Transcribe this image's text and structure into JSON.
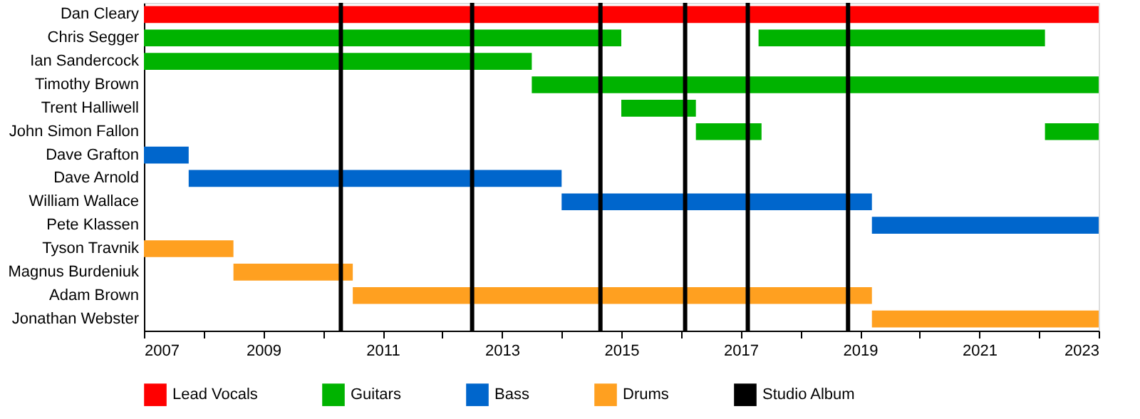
{
  "chart_data": {
    "type": "bar",
    "orientation": "horizontal",
    "categories": [
      "Dan Cleary",
      "Chris Segger",
      "Ian Sandercock",
      "Timothy Brown",
      "Trent Halliwell",
      "John Simon Fallon",
      "Dave Grafton",
      "Dave Arnold",
      "William Wallace",
      "Pete Klassen",
      "Tyson Travnik",
      "Magnus Burdeniuk",
      "Adam Brown",
      "Jonathan Webster"
    ],
    "series": [
      {
        "name": "Lead Vocals",
        "color": "#ff0000",
        "base": [
          2007,
          null,
          null,
          null,
          null,
          null,
          null,
          null,
          null,
          null,
          null,
          null,
          null,
          null
        ],
        "values": [
          16,
          null,
          null,
          null,
          null,
          null,
          null,
          null,
          null,
          null,
          null,
          null,
          null,
          null
        ]
      },
      {
        "name": "Guitars",
        "color": "#00b300",
        "base": [
          null,
          2007,
          2007,
          2013.5,
          2015.0,
          2016.25,
          null,
          null,
          null,
          null,
          null,
          null,
          null,
          null
        ],
        "values": [
          null,
          8.0,
          6.5,
          9.5,
          1.25,
          1.1,
          null,
          null,
          null,
          null,
          null,
          null,
          null,
          null
        ]
      },
      {
        "color": "#00b300",
        "base": [
          null,
          2017.3,
          null,
          null,
          null,
          2022.1,
          null,
          null,
          null,
          null,
          null,
          null,
          null,
          null
        ],
        "values": [
          null,
          4.8,
          null,
          null,
          null,
          0.9,
          null,
          null,
          null,
          null,
          null,
          null,
          null,
          null
        ]
      },
      {
        "name": "Bass",
        "color": "#0066cc",
        "base": [
          null,
          null,
          null,
          null,
          null,
          null,
          2007,
          2007.75,
          2014.0,
          2019.2,
          null,
          null,
          null,
          null
        ],
        "values": [
          null,
          null,
          null,
          null,
          null,
          null,
          0.75,
          6.25,
          5.2,
          3.8,
          null,
          null,
          null,
          null
        ]
      },
      {
        "name": "Drums",
        "color": "#ffa020",
        "base": [
          null,
          null,
          null,
          null,
          null,
          null,
          null,
          null,
          null,
          null,
          2007,
          2008.5,
          2010.5,
          2019.2
        ],
        "values": [
          null,
          null,
          null,
          null,
          null,
          null,
          null,
          null,
          null,
          null,
          1.5,
          2.0,
          8.7,
          3.8
        ]
      }
    ],
    "ref_lines": [
      {
        "axis": "x",
        "value": 2010.3,
        "label": "Studio Album",
        "color": "#000000"
      },
      {
        "axis": "x",
        "value": 2012.5,
        "color": "#000000"
      },
      {
        "axis": "x",
        "value": 2014.65,
        "color": "#000000"
      },
      {
        "axis": "x",
        "value": 2016.07,
        "color": "#000000"
      },
      {
        "axis": "x",
        "value": 2017.12,
        "color": "#000000"
      },
      {
        "axis": "x",
        "value": 2018.8,
        "color": "#000000"
      }
    ],
    "xlim": [
      2007,
      2023
    ],
    "xticks": [
      2007,
      {
        "value": 2008,
        "label": null
      },
      2009,
      {
        "value": 2010,
        "label": null
      },
      2011,
      {
        "value": 2012,
        "label": null
      },
      2013,
      {
        "value": 2014,
        "label": null
      },
      2015,
      {
        "value": 2016,
        "label": null
      },
      2017,
      {
        "value": 2018,
        "label": null
      },
      2019,
      {
        "value": 2020,
        "label": null
      },
      2021,
      {
        "value": 2022,
        "label": null
      },
      2023
    ],
    "grid": false,
    "legend": "bottom"
  }
}
